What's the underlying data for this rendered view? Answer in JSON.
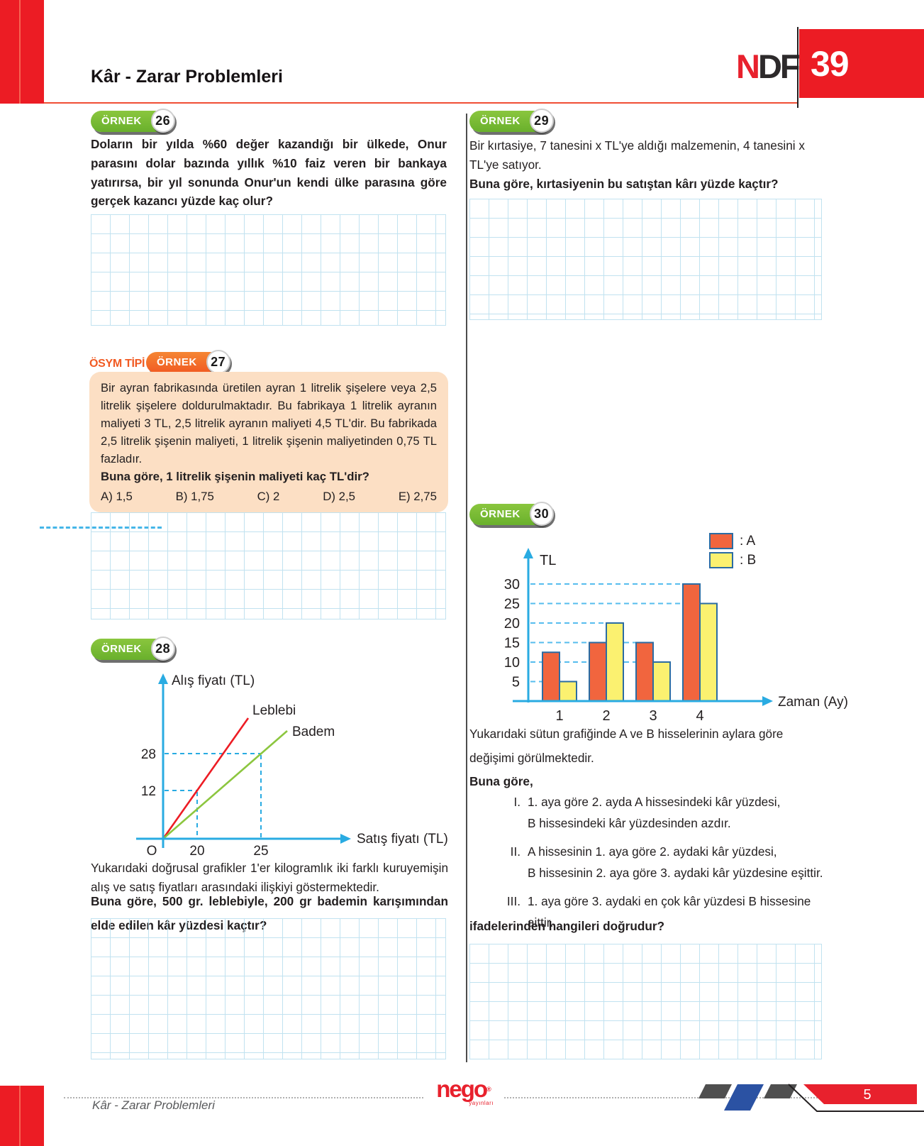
{
  "header": {
    "title": "Kâr - Zarar Problemleri",
    "brand_first": "N",
    "brand_rest": "DF",
    "brand_number": "39"
  },
  "badge_label": "ÖRNEK",
  "examples": {
    "ex26": {
      "number": "26",
      "text": "Doların bir yılda %60 değer kazandığı bir ülkede, Onur parasını dolar bazında yıllık %10 faiz veren bir bankaya yatırırsa, bir yıl sonunda Onur'un kendi ülke parasına göre gerçek kazancı yüzde kaç olur?"
    },
    "ex27": {
      "number": "27",
      "tag": "ÖSYM TİPİ",
      "text": "Bir ayran fabrikasında üretilen ayran 1 litrelik şişelere veya 2,5 litrelik şişelere doldurulmaktadır. Bu fabrikaya 1 litrelik ayranın maliyeti 3 TL, 2,5 litrelik ayranın maliyeti 4,5 TL'dir. Bu fabrikada 2,5 litrelik şişenin maliyeti, 1 litrelik şişenin maliyetinden 0,75 TL fazladır.",
      "question": "Buna göre, 1 litrelik şişenin maliyeti kaç TL'dir?",
      "choices": [
        "A) 1,5",
        "B) 1,75",
        "C) 2",
        "D) 2,5",
        "E) 2,75"
      ]
    },
    "ex28": {
      "number": "28",
      "desc": "Yukarıdaki doğrusal grafikler 1'er kilogramlık iki farklı kuruyemişin alış ve satış fiyatları arasındaki ilişkiyi göstermektedir.",
      "question": "Buna göre, 500 gr. leblebiyle, 200 gr bademin karışımından elde edilen kâr yüzdesi kaçtır?"
    },
    "ex29": {
      "number": "29",
      "text": "Bir kırtasiye, 7 tanesini x TL'ye aldığı malzemenin, 4 tanesini x TL'ye satıyor.",
      "question": "Buna göre, kırtasiyenin bu satıştan kârı yüzde kaçtır?"
    },
    "ex30": {
      "number": "30",
      "desc": "Yukarıdaki sütun grafiğinde A ve B hisselerinin aylara göre değişimi görülmektedir.",
      "lead": "Buna göre,",
      "statements": [
        {
          "num": "I.",
          "lines": [
            "1. aya göre 2. ayda A hissesindeki kâr yüzdesi,",
            "B hissesindeki kâr yüzdesinden azdır."
          ]
        },
        {
          "num": "II.",
          "lines": [
            "A hissesinin 1. aya göre 2. aydaki kâr yüzdesi,",
            "B hissesinin 2. aya göre 3. aydaki kâr yüzdesine eşittir."
          ]
        },
        {
          "num": "III.",
          "lines": [
            "1. aya göre 3. aydaki en çok kâr yüzdesi B hissesine",
            "aittir."
          ]
        }
      ],
      "question": "ifadelerinden hangileri doğrudur?"
    }
  },
  "chart_data": [
    {
      "id": "ex28-line-graph",
      "type": "line",
      "xlabel": "Satış fiyatı (TL)",
      "ylabel": "Alış fiyatı (TL)",
      "origin_label": "O",
      "series": [
        {
          "name": "Leblebi",
          "color": "#ed1c24",
          "points": [
            [
              0,
              0
            ],
            [
              20,
              12
            ]
          ]
        },
        {
          "name": "Badem",
          "color": "#8cc63f",
          "points": [
            [
              0,
              0
            ],
            [
              25,
              28
            ]
          ]
        }
      ],
      "x_ticks": [
        20,
        25
      ],
      "y_ticks": [
        12,
        28
      ],
      "guides": [
        {
          "x": 20,
          "y": 12,
          "series": "Leblebi"
        },
        {
          "x": 25,
          "y": 28,
          "series": "Badem"
        }
      ],
      "axis_color": "#29abe2",
      "grid": "dashed-guides-only"
    },
    {
      "id": "ex30-bar-chart",
      "type": "bar",
      "ylabel": "TL",
      "xlabel": "Zaman (Ay)",
      "categories": [
        "1",
        "2",
        "3",
        "4"
      ],
      "series": [
        {
          "name": "A",
          "color": "#f1653e",
          "values": [
            12.5,
            15,
            15,
            30
          ]
        },
        {
          "name": "B",
          "color": "#fbf170",
          "values": [
            5,
            20,
            10,
            25
          ]
        }
      ],
      "y_ticks": [
        5,
        10,
        15,
        20,
        25,
        30
      ],
      "ylim": [
        0,
        33
      ],
      "legend_labels": [
        ": A",
        ": B"
      ],
      "legend_position": "top-right",
      "bar_border_color": "#2b6ca3",
      "gridline_color": "#56bdee",
      "axis_color": "#29abe2",
      "grid": "dashed-horizontal"
    }
  ],
  "footer": {
    "left_title": "Kâr - Zarar Problemleri",
    "logo_text": "nego",
    "logo_reg": "®",
    "logo_sub": "yayınları",
    "page_number": "5"
  }
}
